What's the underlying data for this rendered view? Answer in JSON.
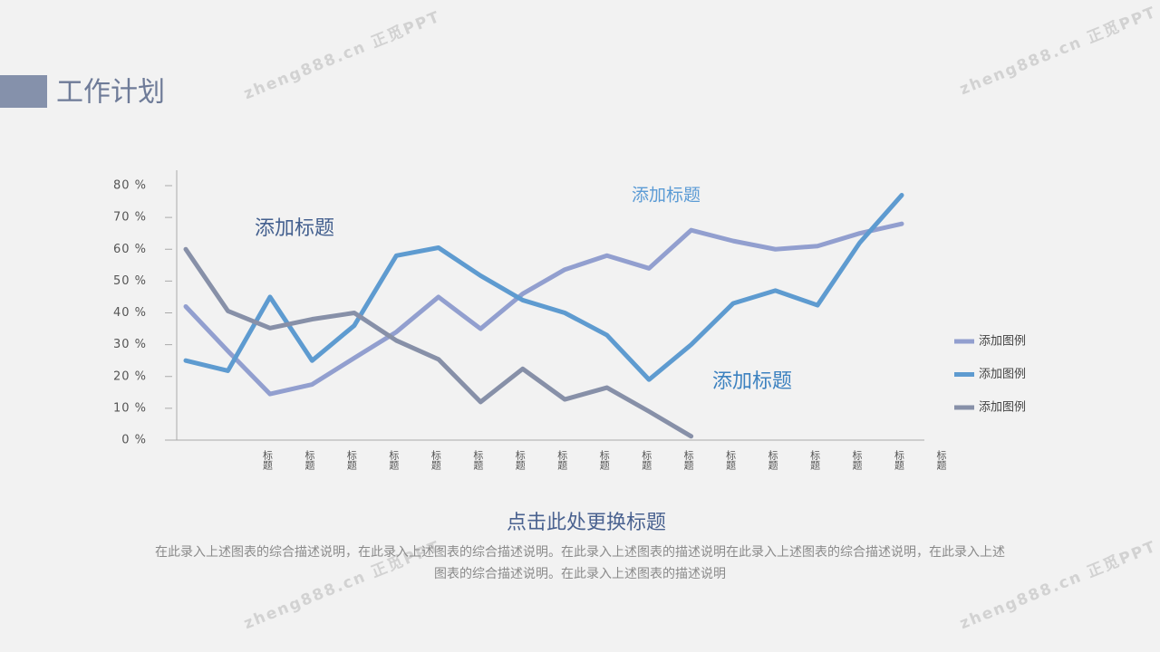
{
  "header": {
    "title": "工作计划"
  },
  "watermarks": [
    "zheng888.cn 正觅PPT",
    "zheng888.cn 正觅PPT",
    "zheng888.cn 正觅PPT",
    "zheng888.cn 正觅PPT"
  ],
  "chart_data": {
    "type": "line",
    "categories": [
      null,
      "标题",
      "标题",
      "标题",
      "标题",
      "标题",
      "标题",
      "标题",
      "标题",
      "标题",
      "标题",
      "标题",
      "标题",
      "标题",
      "标题",
      "标题",
      "标题",
      "标题"
    ],
    "series": [
      {
        "name": "添加图例",
        "color": "#929fcf",
        "values": [
          42,
          28,
          14.5,
          17.5,
          25.8,
          34,
          45,
          35,
          46,
          53.6,
          58,
          54,
          66,
          62.6,
          60,
          61,
          65,
          68
        ]
      },
      {
        "name": "添加图例",
        "color": "#5e9bd0",
        "values": [
          25,
          21.8,
          45,
          25,
          36,
          58,
          60.5,
          51.7,
          44,
          40,
          33,
          19,
          30,
          43,
          47,
          42.4,
          62,
          77
        ]
      },
      {
        "name": "添加图例",
        "color": "#8790a8",
        "values": [
          60,
          40.6,
          35.2,
          38,
          40,
          31.3,
          25.4,
          12,
          22.4,
          12.8,
          16.5,
          9,
          1.2,
          null,
          null,
          null,
          null,
          null
        ]
      }
    ],
    "ylim": [
      0,
      80
    ],
    "yticks": [
      {
        "value": 0,
        "label": "0 %"
      },
      {
        "value": 10,
        "label": "10 %"
      },
      {
        "value": 20,
        "label": "20 %"
      },
      {
        "value": 30,
        "label": "30 %"
      },
      {
        "value": 40,
        "label": "40 %"
      },
      {
        "value": 50,
        "label": "50 %"
      },
      {
        "value": 60,
        "label": "60 %"
      },
      {
        "value": 70,
        "label": "70 %"
      },
      {
        "value": 80,
        "label": "80 %"
      }
    ],
    "annotations": [
      "添加标题",
      "添加标题",
      "添加标题"
    ],
    "caption_title": "点击此处更换标题",
    "caption": "在此录入上述图表的综合描述说明，在此录入上述图表的综合描述说明。在此录入上述图表的描述说明在此录入上述图表的综合描述说明，在此录入上述图表的综合描述说明。在此录入上述图表的描述说明"
  }
}
